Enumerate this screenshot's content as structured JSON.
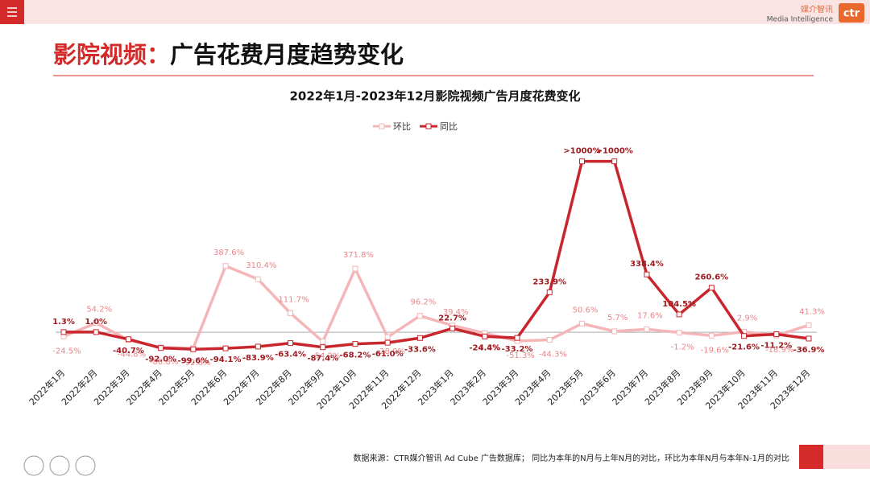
{
  "header": {
    "logo_cn": "媒介智讯",
    "logo_en": "Media Intelligence",
    "logo_mark": "ctr"
  },
  "slide_title": {
    "highlight": "影院视频：",
    "rest": "广告花费月度趋势变化"
  },
  "footer": {
    "source": "数据来源：CTR媒介智讯 Ad Cube 广告数据库； 同比为本年的N月与上年N月的对比，环比为本年N月与本年N-1月的对比"
  },
  "chart_data": {
    "type": "line",
    "title": "2022年1月-2023年12月影院视频广告月度花费变化",
    "categories": [
      "2022年1月",
      "2022年2月",
      "2022年3月",
      "2022年4月",
      "2022年5月",
      "2022年6月",
      "2022年7月",
      "2022年8月",
      "2022年9月",
      "2022年10月",
      "2022年11月",
      "2022年12月",
      "2023年1月",
      "2023年2月",
      "2023年3月",
      "2023年4月",
      "2023年5月",
      "2023年6月",
      "2023年7月",
      "2023年8月",
      "2023年9月",
      "2023年10月",
      "2023年11月",
      "2023年12月"
    ],
    "ylim": [
      -150,
      1050
    ],
    "series": [
      {
        "name": "环比",
        "color": "#f4b6b8",
        "label_color": "#e8868a",
        "values": [
          -24.5,
          54.2,
          -44.8,
          -88.8,
          -92.8,
          387.6,
          310.4,
          111.7,
          -54.2,
          371.8,
          -28.0,
          96.2,
          39.4,
          -4.8,
          -51.3,
          -44.3,
          50.6,
          5.7,
          17.6,
          -1.2,
          -19.6,
          2.9,
          -18.9,
          41.3
        ],
        "value_labels": [
          "-24.5%",
          "54.2%",
          "-44.8%",
          "-88.8%",
          "-92.8%",
          "387.6%",
          "310.4%",
          "111.7%",
          "-54.2%",
          "371.8%",
          "-28.0%",
          "96.2%",
          "39.4%",
          "-4.8%",
          "-51.3%",
          "-44.3%",
          "50.6%",
          "5.7%",
          "17.6%",
          "-1.2%",
          "-19.6%",
          "2.9%",
          "-18.9%",
          "41.3%"
        ]
      },
      {
        "name": "同比",
        "color": "#c8262c",
        "label_color": "#9e1b20",
        "values": [
          1.3,
          1.0,
          -40.7,
          -92.0,
          -99.6,
          -94.1,
          -83.9,
          -63.4,
          -87.4,
          -68.2,
          -61.0,
          -33.6,
          22.7,
          -24.4,
          -33.2,
          233.9,
          1000,
          1000,
          338.4,
          104.5,
          260.6,
          -21.6,
          -11.2,
          -36.9
        ],
        "value_labels": [
          "1.3%",
          "1.0%",
          "-40.7%",
          "-92.0%",
          "-99.6%",
          "-94.1%",
          "-83.9%",
          "-63.4%",
          "-87.4%",
          "-68.2%",
          "-61.0%",
          "-33.6%",
          "22.7%",
          "-24.4%",
          "-33.2%",
          "233.9%",
          ">1000%",
          ">1000%",
          "338.4%",
          "104.5%",
          "260.6%",
          "-21.6%",
          "-11.2%",
          "-36.9%"
        ]
      }
    ]
  }
}
